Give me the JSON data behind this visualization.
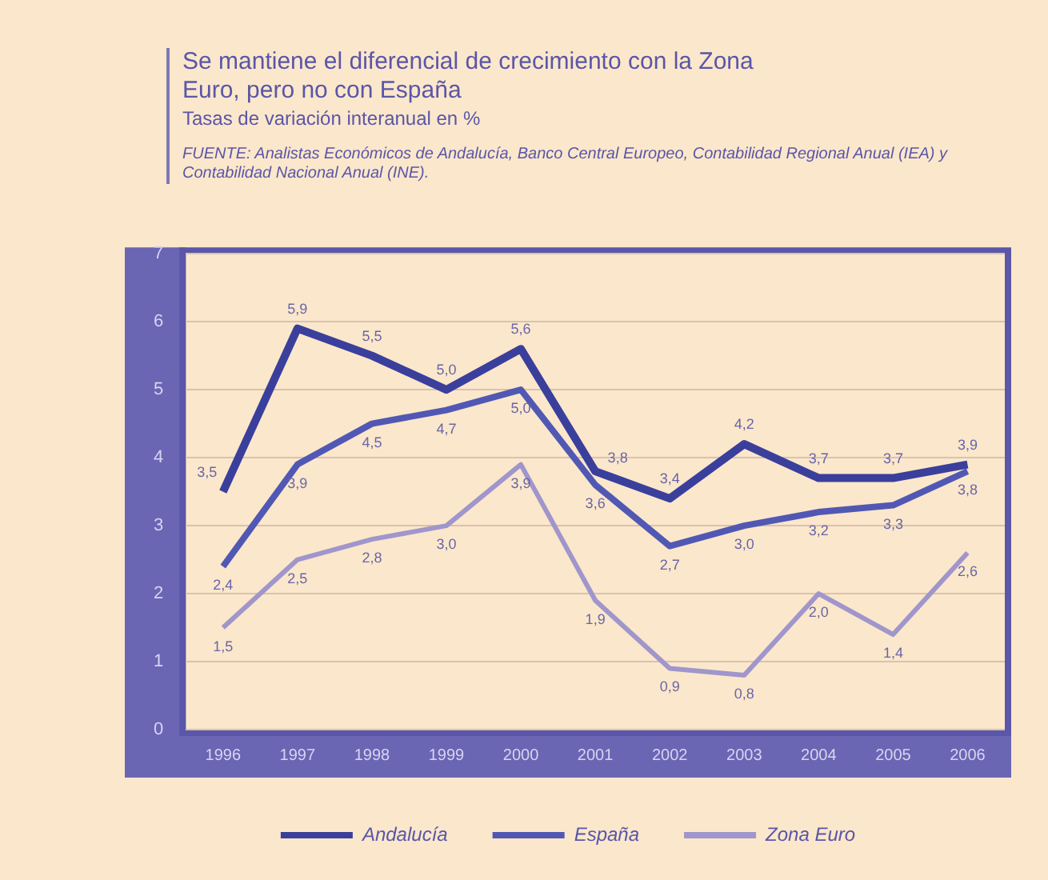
{
  "chart_data": {
    "type": "line",
    "title": "Se mantiene el diferencial de crecimiento con la Zona Euro, pero no con España",
    "subtitle": "Tasas de variación interanual en %",
    "annotations": [
      "FUENTE: Analistas Económicos de Andalucía, Banco Central Europeo, Contabilidad Regional Anual (IEA) y Contabilidad Nacional Anual (INE)."
    ],
    "categories": [
      "1996",
      "1997",
      "1998",
      "1999",
      "2000",
      "2001",
      "2002",
      "2003",
      "2004",
      "2005",
      "2006"
    ],
    "series": [
      {
        "name": "Andalucía",
        "color": "#3b3f9c",
        "values": [
          3.5,
          5.9,
          5.5,
          5.0,
          5.6,
          3.8,
          3.4,
          4.2,
          3.7,
          3.7,
          3.9
        ],
        "value_labels": [
          "3,5",
          "5,9",
          "5,5",
          "5,0",
          "5,6",
          "3,8",
          "3,4",
          "4,2",
          "3,7",
          "3,7",
          "3,9"
        ]
      },
      {
        "name": "España",
        "color": "#5158b4",
        "values": [
          2.4,
          3.9,
          4.5,
          4.7,
          5.0,
          3.6,
          2.7,
          3.0,
          3.2,
          3.3,
          3.8
        ],
        "value_labels": [
          "2,4",
          "3,9",
          "4,5",
          "4,7",
          "5,0",
          "3,6",
          "2,7",
          "3,0",
          "3,2",
          "3,3",
          "3,8"
        ]
      },
      {
        "name": "Zona Euro",
        "color": "#a096cc",
        "values": [
          1.5,
          2.5,
          2.8,
          3.0,
          3.9,
          1.9,
          0.9,
          0.8,
          2.0,
          1.4,
          2.6
        ],
        "value_labels": [
          "1,5",
          "2,5",
          "2,8",
          "3,0",
          "3,9",
          "1,9",
          "0,9",
          "0,8",
          "2,0",
          "1,4",
          "2,6"
        ]
      }
    ],
    "ylim": [
      0,
      7
    ],
    "yticks": [
      0,
      1,
      2,
      3,
      4,
      5,
      6,
      7
    ],
    "grid": "y",
    "legend": "bottom",
    "marker": "none",
    "line_style": "solid"
  }
}
